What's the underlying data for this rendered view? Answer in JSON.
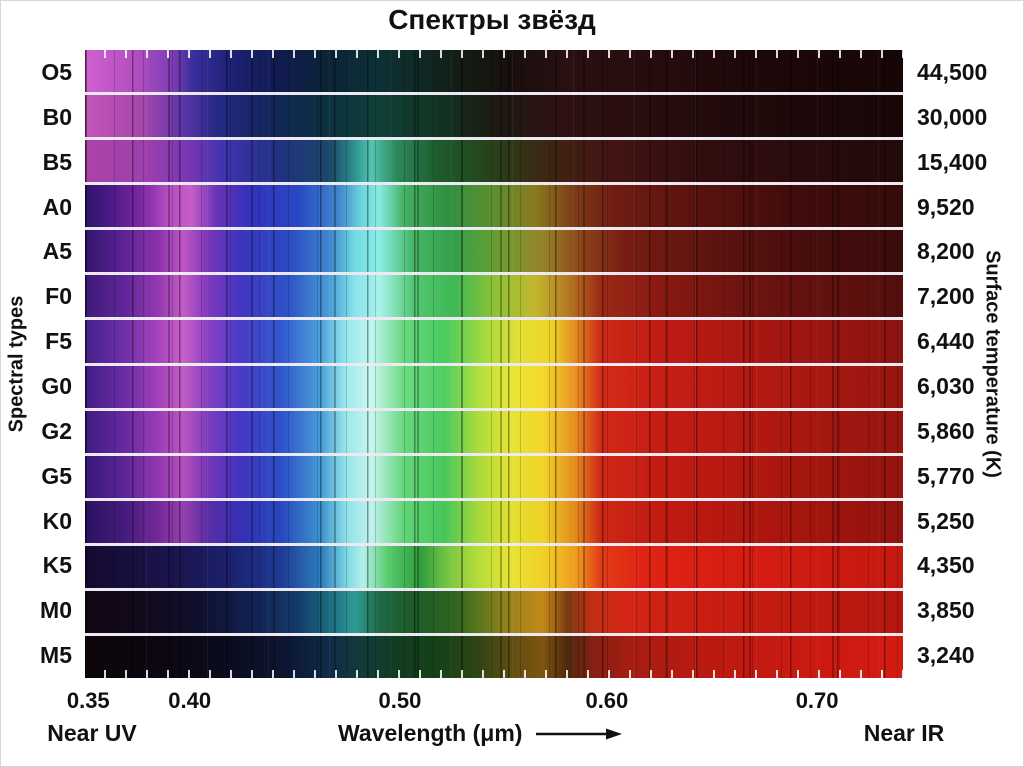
{
  "colors": {
    "background": "#ffffff",
    "text": "#111111",
    "row_separator": "#ece9f2"
  },
  "chart_data": {
    "type": "heatmap",
    "title": "Спектры звёзд",
    "x_axis": {
      "label": "Wavelength (μm)",
      "ticks": [
        "0.35",
        "0.40",
        "0.50",
        "0.60",
        "0.70"
      ],
      "tick_positions_pct": [
        0.4,
        12.8,
        38.5,
        63.8,
        89.5
      ],
      "range_um": [
        0.35,
        0.755
      ],
      "left_annotation": "Near UV",
      "right_annotation": "Near IR"
    },
    "y_axis_left_label": "Spectral types",
    "y_axis_right_label": "Surface temperature (K)",
    "legend": "each row is the visible-light spectrum of a star of the given spectral type; gradient stops are [position_pct, color]",
    "rows": [
      {
        "spectral_type": "O5",
        "temperature_k": "44,500",
        "stops": [
          [
            0,
            "#d060cf"
          ],
          [
            6,
            "#b44fc1"
          ],
          [
            11,
            "#7a3bb4"
          ],
          [
            13,
            "#3c2f9e"
          ],
          [
            18,
            "#1c2173"
          ],
          [
            24,
            "#101b4e"
          ],
          [
            30,
            "#0b2436"
          ],
          [
            35,
            "#0d3038"
          ],
          [
            40,
            "#0f2c28"
          ],
          [
            46,
            "#121d14"
          ],
          [
            52,
            "#190f0e"
          ],
          [
            60,
            "#2b1012"
          ],
          [
            70,
            "#270c0e"
          ],
          [
            82,
            "#1d0809"
          ],
          [
            100,
            "#180607"
          ]
        ]
      },
      {
        "spectral_type": "B0",
        "temperature_k": "30,000",
        "stops": [
          [
            0,
            "#c355b8"
          ],
          [
            7,
            "#a746ad"
          ],
          [
            12,
            "#5c35a8"
          ],
          [
            16,
            "#262a86"
          ],
          [
            22,
            "#15255f"
          ],
          [
            29,
            "#0c2f41"
          ],
          [
            36,
            "#104038"
          ],
          [
            43,
            "#123524"
          ],
          [
            50,
            "#1d1b12"
          ],
          [
            57,
            "#2e1113"
          ],
          [
            68,
            "#2a0d0f"
          ],
          [
            80,
            "#200a0b"
          ],
          [
            100,
            "#190708"
          ]
        ]
      },
      {
        "spectral_type": "B5",
        "temperature_k": "15,400",
        "stops": [
          [
            0,
            "#ad43a6"
          ],
          [
            8,
            "#9a3fae"
          ],
          [
            13,
            "#7436b2"
          ],
          [
            17,
            "#3e33b0"
          ],
          [
            24,
            "#20317f"
          ],
          [
            30,
            "#1b4868"
          ],
          [
            33,
            "#2f9390"
          ],
          [
            35,
            "#54c4b4"
          ],
          [
            38,
            "#2c8a5c"
          ],
          [
            43,
            "#1d5c2c"
          ],
          [
            50,
            "#27401a"
          ],
          [
            57,
            "#3f2413"
          ],
          [
            64,
            "#431513"
          ],
          [
            76,
            "#310d0e"
          ],
          [
            100,
            "#230a0b"
          ]
        ]
      },
      {
        "spectral_type": "A0",
        "temperature_k": "9,520",
        "stops": [
          [
            0,
            "#2c1468"
          ],
          [
            3,
            "#4a1a85"
          ],
          [
            7,
            "#7d28a3"
          ],
          [
            10,
            "#b44cc0"
          ],
          [
            13,
            "#c65ec8"
          ],
          [
            16,
            "#6c33b8"
          ],
          [
            20,
            "#3331bd"
          ],
          [
            26,
            "#2847c4"
          ],
          [
            31,
            "#3f86cc"
          ],
          [
            34,
            "#6fd9df"
          ],
          [
            36,
            "#86eae2"
          ],
          [
            39,
            "#46b065"
          ],
          [
            44,
            "#2f9142"
          ],
          [
            50,
            "#5d8f2e"
          ],
          [
            55,
            "#8a7a1e"
          ],
          [
            60,
            "#7c3a16"
          ],
          [
            65,
            "#701c12"
          ],
          [
            74,
            "#5c130f"
          ],
          [
            86,
            "#420d0c"
          ],
          [
            100,
            "#350b0a"
          ]
        ]
      },
      {
        "spectral_type": "A5",
        "temperature_k": "8,200",
        "stops": [
          [
            0,
            "#32156b"
          ],
          [
            4,
            "#55208f"
          ],
          [
            9,
            "#8c32ab"
          ],
          [
            12,
            "#c057c4"
          ],
          [
            15,
            "#7a36b8"
          ],
          [
            19,
            "#3a34bd"
          ],
          [
            25,
            "#2b4ac2"
          ],
          [
            30,
            "#3f88cf"
          ],
          [
            33,
            "#72dce2"
          ],
          [
            36,
            "#8aece6"
          ],
          [
            40,
            "#47b768"
          ],
          [
            45,
            "#33a04a"
          ],
          [
            51,
            "#6f9c2f"
          ],
          [
            56,
            "#97832a"
          ],
          [
            61,
            "#8a4018"
          ],
          [
            66,
            "#771e13"
          ],
          [
            76,
            "#5e1410"
          ],
          [
            88,
            "#470e0d"
          ],
          [
            100,
            "#3a0c0b"
          ]
        ]
      },
      {
        "spectral_type": "F0",
        "temperature_k": "7,200",
        "stops": [
          [
            0,
            "#3b1a78"
          ],
          [
            5,
            "#62269a"
          ],
          [
            9,
            "#9438b0"
          ],
          [
            12,
            "#c45cc6"
          ],
          [
            15,
            "#8039bd"
          ],
          [
            19,
            "#4136c2"
          ],
          [
            25,
            "#2f53c8"
          ],
          [
            30,
            "#49a0d8"
          ],
          [
            33,
            "#8ae4ea"
          ],
          [
            36,
            "#a8f2ec"
          ],
          [
            40,
            "#55c872"
          ],
          [
            45,
            "#3db954"
          ],
          [
            50,
            "#8cc236"
          ],
          [
            55,
            "#c2b82e"
          ],
          [
            59,
            "#b57a20"
          ],
          [
            63,
            "#9c2a16"
          ],
          [
            70,
            "#8a1a12"
          ],
          [
            80,
            "#6e1410"
          ],
          [
            100,
            "#550f0e"
          ]
        ]
      },
      {
        "spectral_type": "F5",
        "temperature_k": "6,440",
        "stops": [
          [
            0,
            "#45208a"
          ],
          [
            5,
            "#7030a8"
          ],
          [
            9,
            "#a843bd"
          ],
          [
            12,
            "#c960ca"
          ],
          [
            15,
            "#8a40c4"
          ],
          [
            19,
            "#4a3cc8"
          ],
          [
            24,
            "#3158ce"
          ],
          [
            29,
            "#4fa6dd"
          ],
          [
            32,
            "#97e9ee"
          ],
          [
            35,
            "#c0f6f0"
          ],
          [
            39,
            "#66d77e"
          ],
          [
            44,
            "#49cb5e"
          ],
          [
            49,
            "#a6da3c"
          ],
          [
            53,
            "#e2e034"
          ],
          [
            57,
            "#f0d428"
          ],
          [
            60,
            "#e08920"
          ],
          [
            63,
            "#ce2a18"
          ],
          [
            70,
            "#c01c14"
          ],
          [
            82,
            "#a81712"
          ],
          [
            100,
            "#8c1410"
          ]
        ]
      },
      {
        "spectral_type": "G0",
        "temperature_k": "6,030",
        "stops": [
          [
            0,
            "#411d85"
          ],
          [
            5,
            "#6c2da4"
          ],
          [
            9,
            "#a440ba"
          ],
          [
            12,
            "#c35cc6"
          ],
          [
            15,
            "#8440c2"
          ],
          [
            19,
            "#483ac6"
          ],
          [
            24,
            "#3056cc"
          ],
          [
            29,
            "#4da4da"
          ],
          [
            32,
            "#9feaee"
          ],
          [
            35,
            "#ccf8f2"
          ],
          [
            39,
            "#6cda82"
          ],
          [
            44,
            "#50ce62"
          ],
          [
            48,
            "#aede3e"
          ],
          [
            52,
            "#e8e636"
          ],
          [
            56,
            "#f4da2a"
          ],
          [
            60,
            "#e89022"
          ],
          [
            63,
            "#d42c18"
          ],
          [
            70,
            "#c81e15"
          ],
          [
            84,
            "#b01912"
          ],
          [
            100,
            "#981610"
          ]
        ]
      },
      {
        "spectral_type": "G2",
        "temperature_k": "5,860",
        "stops": [
          [
            0,
            "#3d1b80"
          ],
          [
            5,
            "#662aa0"
          ],
          [
            9,
            "#9c3cb6"
          ],
          [
            12,
            "#bc56c2"
          ],
          [
            15,
            "#7e3cbe"
          ],
          [
            19,
            "#4438c4"
          ],
          [
            24,
            "#2e52ca"
          ],
          [
            29,
            "#4aa0d8"
          ],
          [
            32,
            "#9ce8ec"
          ],
          [
            35,
            "#c8f6f0"
          ],
          [
            39,
            "#68d87e"
          ],
          [
            44,
            "#4cca5e"
          ],
          [
            48,
            "#aadc3c"
          ],
          [
            52,
            "#e6e434"
          ],
          [
            56,
            "#f2d628"
          ],
          [
            60,
            "#e68c20"
          ],
          [
            63,
            "#d22a17"
          ],
          [
            70,
            "#c61d14"
          ],
          [
            84,
            "#ae1811"
          ],
          [
            100,
            "#961510"
          ]
        ]
      },
      {
        "spectral_type": "G5",
        "temperature_k": "5,770",
        "stops": [
          [
            0,
            "#371878"
          ],
          [
            5,
            "#5e2698"
          ],
          [
            9,
            "#9438b0"
          ],
          [
            12,
            "#b450bc"
          ],
          [
            15,
            "#7638b8"
          ],
          [
            19,
            "#4034be"
          ],
          [
            24,
            "#2c4ec6"
          ],
          [
            29,
            "#46a0d6"
          ],
          [
            32,
            "#98e6ea"
          ],
          [
            35,
            "#c4f4ee"
          ],
          [
            39,
            "#64d67a"
          ],
          [
            44,
            "#48c85a"
          ],
          [
            48,
            "#a6da3a"
          ],
          [
            52,
            "#e4e232"
          ],
          [
            56,
            "#f0d426"
          ],
          [
            60,
            "#e48a1e"
          ],
          [
            63,
            "#d02916"
          ],
          [
            70,
            "#c41c13"
          ],
          [
            84,
            "#ac1710"
          ],
          [
            100,
            "#94140f"
          ]
        ]
      },
      {
        "spectral_type": "K0",
        "temperature_k": "5,250",
        "stops": [
          [
            0,
            "#2a1260"
          ],
          [
            5,
            "#461c7e"
          ],
          [
            9,
            "#742a98"
          ],
          [
            12,
            "#9440ae"
          ],
          [
            15,
            "#5c2ea6"
          ],
          [
            19,
            "#3430b4"
          ],
          [
            24,
            "#2848bc"
          ],
          [
            29,
            "#3e96d0"
          ],
          [
            32,
            "#90e2e8"
          ],
          [
            35,
            "#c0f2ee"
          ],
          [
            39,
            "#60d476"
          ],
          [
            44,
            "#46c658"
          ],
          [
            48,
            "#a4d838"
          ],
          [
            52,
            "#e2e030"
          ],
          [
            56,
            "#eed224"
          ],
          [
            60,
            "#e2881c"
          ],
          [
            63,
            "#ce2815"
          ],
          [
            70,
            "#c21b12"
          ],
          [
            84,
            "#aa160f"
          ],
          [
            100,
            "#92130e"
          ]
        ]
      },
      {
        "spectral_type": "K5",
        "temperature_k": "4,350",
        "stops": [
          [
            0,
            "#140a2e"
          ],
          [
            6,
            "#181040"
          ],
          [
            12,
            "#1a1650"
          ],
          [
            18,
            "#1c2270"
          ],
          [
            24,
            "#1e3a94"
          ],
          [
            29,
            "#2f80c0"
          ],
          [
            32,
            "#7cd8e4"
          ],
          [
            34,
            "#b4f0ec"
          ],
          [
            37,
            "#58cc6e"
          ],
          [
            41,
            "#2f9c3c"
          ],
          [
            44,
            "#6fc243"
          ],
          [
            48,
            "#b4dc3a"
          ],
          [
            52,
            "#e8e434"
          ],
          [
            56,
            "#f2d028"
          ],
          [
            60,
            "#ee9c1e"
          ],
          [
            63,
            "#e23c16"
          ],
          [
            68,
            "#e02414"
          ],
          [
            80,
            "#d61d12"
          ],
          [
            100,
            "#c41910"
          ]
        ]
      },
      {
        "spectral_type": "M0",
        "temperature_k": "3,850",
        "stops": [
          [
            0,
            "#120714"
          ],
          [
            8,
            "#120a1e"
          ],
          [
            14,
            "#10102e"
          ],
          [
            20,
            "#122050"
          ],
          [
            26,
            "#143a6a"
          ],
          [
            30,
            "#1c6e80"
          ],
          [
            33,
            "#2f9a96"
          ],
          [
            36,
            "#1f6a46"
          ],
          [
            40,
            "#1d5a28"
          ],
          [
            45,
            "#2c641e"
          ],
          [
            49,
            "#6a7a1c"
          ],
          [
            53,
            "#a8861c"
          ],
          [
            56,
            "#c28818"
          ],
          [
            59,
            "#7a3a10"
          ],
          [
            62,
            "#c03014"
          ],
          [
            66,
            "#d42615"
          ],
          [
            74,
            "#cc1e12"
          ],
          [
            88,
            "#c01a10"
          ],
          [
            100,
            "#b4170f"
          ]
        ]
      },
      {
        "spectral_type": "M5",
        "temperature_k": "3,240",
        "stops": [
          [
            0,
            "#0c050a"
          ],
          [
            10,
            "#0c0712"
          ],
          [
            18,
            "#0b0c20"
          ],
          [
            25,
            "#0c1834"
          ],
          [
            30,
            "#102c48"
          ],
          [
            34,
            "#123c3a"
          ],
          [
            38,
            "#123c22"
          ],
          [
            43,
            "#154218"
          ],
          [
            48,
            "#2e4414"
          ],
          [
            52,
            "#5e4e12"
          ],
          [
            56,
            "#7e5410"
          ],
          [
            59,
            "#4e280c"
          ],
          [
            62,
            "#842012"
          ],
          [
            67,
            "#a81d12"
          ],
          [
            75,
            "#b81a11"
          ],
          [
            86,
            "#c81a12"
          ],
          [
            100,
            "#d41b12"
          ]
        ]
      }
    ]
  }
}
